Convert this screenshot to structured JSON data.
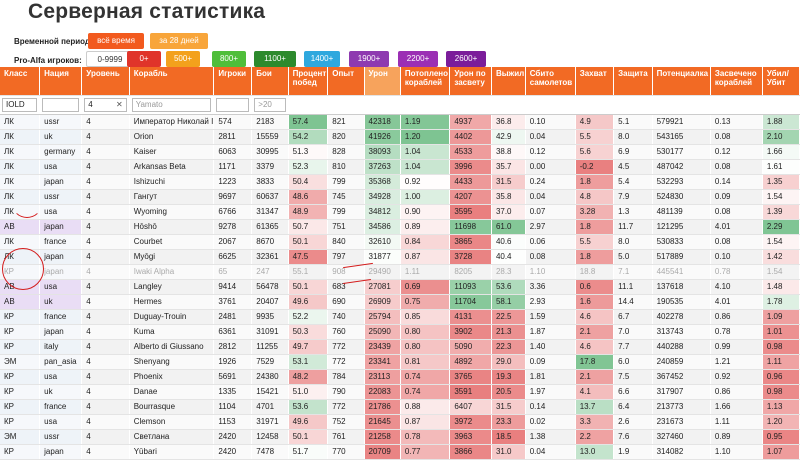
{
  "title": "Серверная статистика",
  "period": {
    "label": "Временной период:",
    "buttons": [
      {
        "label": "всё время",
        "color": "#f25a1e"
      },
      {
        "label": "за 28 дней",
        "color": "#f8a53a"
      }
    ]
  },
  "players": {
    "label": "Pro-Alfa игроков:",
    "buttons": [
      {
        "label": "0-9999",
        "color": "#ffffff",
        "text": "#333333"
      },
      {
        "label": "0+",
        "color": "#e0342a",
        "text": "#ffffff"
      },
      {
        "label": "500+",
        "color": "#f3a11c",
        "text": "#ffffff"
      },
      {
        "label": "800+",
        "color": "#4fbe3a",
        "text": "#ffffff"
      },
      {
        "label": "1100+",
        "color": "#2d8a2d",
        "text": "#ffffff"
      },
      {
        "label": "1400+",
        "color": "#2fa8de",
        "text": "#ffffff"
      },
      {
        "label": "1900+",
        "color": "#8e3ab0",
        "text": "#ffffff"
      },
      {
        "label": "2200+",
        "color": "#9b2fb4",
        "text": "#ffffff"
      },
      {
        "label": "2600+",
        "color": "#7b1d9a",
        "text": "#ffffff"
      }
    ]
  },
  "columns": [
    "Класс",
    "Нация",
    "Уровень",
    "Корабль",
    "Игроки",
    "Бои",
    "Процент побед",
    "Опыт",
    "Урон",
    "Потоплено кораблей",
    "Урон по засвету",
    "Выжил",
    "Сбито самолетов",
    "Захват",
    "Защита",
    "Потенциалка",
    "Засвечено кораблей",
    "Убил/Убит"
  ],
  "filters": {
    "class": "IOLD",
    "level": "4",
    "ship": "Yamato",
    "battles": ">20"
  },
  "rows": [
    {
      "c": [
        "ЛК",
        "ussr",
        "4",
        "Император Николай I",
        "574",
        "2183",
        "57.4",
        "821",
        "42318",
        "1.19",
        "4937",
        "36.8",
        "0.10",
        "4.9",
        "5.1",
        "579921",
        "0.13",
        "1.88"
      ]
    },
    {
      "c": [
        "ЛК",
        "uk",
        "4",
        "Orion",
        "2811",
        "15559",
        "54.2",
        "820",
        "41926",
        "1.20",
        "4402",
        "42.9",
        "0.04",
        "5.5",
        "8.0",
        "543165",
        "0.08",
        "2.10"
      ]
    },
    {
      "c": [
        "ЛК",
        "germany",
        "4",
        "Kaiser",
        "6063",
        "30995",
        "51.3",
        "828",
        "38093",
        "1.04",
        "4533",
        "38.8",
        "0.12",
        "5.6",
        "6.9",
        "530177",
        "0.12",
        "1.66"
      ]
    },
    {
      "c": [
        "ЛК",
        "usa",
        "4",
        "Arkansas Beta",
        "1171",
        "3379",
        "52.3",
        "810",
        "37263",
        "1.04",
        "3996",
        "35.7",
        "0.00",
        "-0.2",
        "4.5",
        "487042",
        "0.08",
        "1.61"
      ]
    },
    {
      "c": [
        "ЛК",
        "japan",
        "4",
        "Ishizuchi",
        "1223",
        "3833",
        "50.4",
        "799",
        "35368",
        "0.92",
        "4433",
        "31.5",
        "0.24",
        "1.8",
        "5.4",
        "532293",
        "0.14",
        "1.35"
      ]
    },
    {
      "c": [
        "ЛК",
        "ussr",
        "4",
        "Гангут",
        "9697",
        "60637",
        "48.6",
        "745",
        "34928",
        "1.00",
        "4207",
        "35.8",
        "0.04",
        "4.8",
        "7.9",
        "524830",
        "0.09",
        "1.54"
      ]
    },
    {
      "c": [
        "ЛК",
        "usa",
        "4",
        "Wyoming",
        "6766",
        "31347",
        "48.9",
        "799",
        "34812",
        "0.90",
        "3595",
        "37.0",
        "0.07",
        "3.28",
        "1.3",
        "481139",
        "0.08",
        "1.39"
      ]
    },
    {
      "c": [
        "АВ",
        "japan",
        "4",
        "Hōshō",
        "9278",
        "61365",
        "50.7",
        "751",
        "34586",
        "0.89",
        "11698",
        "61.0",
        "2.97",
        "1.8",
        "11.7",
        "121295",
        "4.01",
        "2.29"
      ]
    },
    {
      "c": [
        "ЛК",
        "france",
        "4",
        "Courbet",
        "2067",
        "8670",
        "50.1",
        "840",
        "32610",
        "0.84",
        "3865",
        "40.6",
        "0.06",
        "5.5",
        "8.0",
        "530833",
        "0.08",
        "1.54"
      ]
    },
    {
      "c": [
        "ЛК",
        "japan",
        "4",
        "Myōgi",
        "6625",
        "32361",
        "47.5",
        "797",
        "31877",
        "0.87",
        "3728",
        "40.4",
        "0.08",
        "1.8",
        "5.0",
        "517889",
        "0.10",
        "1.42"
      ]
    },
    {
      "c": [
        "КР",
        "japan",
        "4",
        "Iwaki Alpha",
        "65",
        "247",
        "55.1",
        "908",
        "29490",
        "1.11",
        "8205",
        "28.3",
        "1.10",
        "18.8",
        "7.1",
        "445541",
        "0.78",
        "1.54"
      ],
      "dim": true
    },
    {
      "c": [
        "АВ",
        "usa",
        "4",
        "Langley",
        "9414",
        "56478",
        "50.1",
        "683",
        "27081",
        "0.69",
        "11093",
        "53.6",
        "3.36",
        "0.6",
        "11.1",
        "137618",
        "4.10",
        "1.48"
      ]
    },
    {
      "c": [
        "АВ",
        "uk",
        "4",
        "Hermes",
        "3761",
        "20407",
        "49.6",
        "690",
        "26909",
        "0.75",
        "11704",
        "58.1",
        "2.93",
        "1.6",
        "14.4",
        "190535",
        "4.01",
        "1.78"
      ]
    },
    {
      "c": [
        "КР",
        "france",
        "4",
        "Duguay-Trouin",
        "2481",
        "9935",
        "52.2",
        "740",
        "25794",
        "0.85",
        "4131",
        "22.5",
        "1.59",
        "4.6",
        "6.7",
        "402278",
        "0.86",
        "1.09"
      ]
    },
    {
      "c": [
        "КР",
        "japan",
        "4",
        "Kuma",
        "6361",
        "31091",
        "50.3",
        "760",
        "25090",
        "0.80",
        "3902",
        "21.3",
        "1.87",
        "2.1",
        "7.0",
        "313743",
        "0.78",
        "1.01"
      ]
    },
    {
      "c": [
        "КР",
        "italy",
        "4",
        "Alberto di Giussano",
        "2812",
        "11255",
        "49.7",
        "772",
        "23439",
        "0.80",
        "5090",
        "22.3",
        "1.40",
        "4.6",
        "7.7",
        "440288",
        "0.99",
        "0.98"
      ]
    },
    {
      "c": [
        "ЭМ",
        "pan_asia",
        "4",
        "Shenyang",
        "1926",
        "7529",
        "53.1",
        "772",
        "23341",
        "0.81",
        "4892",
        "29.0",
        "0.09",
        "17.8",
        "6.0",
        "240859",
        "1.21",
        "1.11"
      ]
    },
    {
      "c": [
        "КР",
        "usa",
        "4",
        "Phoenix",
        "5691",
        "24380",
        "48.2",
        "784",
        "23113",
        "0.74",
        "3765",
        "19.3",
        "1.81",
        "2.1",
        "7.5",
        "367452",
        "0.92",
        "0.96"
      ]
    },
    {
      "c": [
        "КР",
        "uk",
        "4",
        "Danae",
        "1335",
        "15421",
        "51.0",
        "790",
        "22083",
        "0.74",
        "3591",
        "20.5",
        "1.97",
        "4.1",
        "6.6",
        "317907",
        "0.86",
        "0.98"
      ]
    },
    {
      "c": [
        "КР",
        "france",
        "4",
        "Bourrasque",
        "1104",
        "4701",
        "53.6",
        "772",
        "21786",
        "0.88",
        "6407",
        "31.5",
        "0.14",
        "13.7",
        "6.4",
        "213773",
        "1.66",
        "1.13"
      ]
    },
    {
      "c": [
        "КР",
        "usa",
        "4",
        "Clemson",
        "1153",
        "31971",
        "49.6",
        "752",
        "21645",
        "0.87",
        "3972",
        "23.3",
        "0.02",
        "3.3",
        "2.6",
        "231673",
        "1.11",
        "1.20"
      ]
    },
    {
      "c": [
        "ЭМ",
        "ussr",
        "4",
        "Светлана",
        "2420",
        "12458",
        "50.1",
        "761",
        "21258",
        "0.78",
        "3963",
        "18.5",
        "1.38",
        "2.2",
        "7.6",
        "327460",
        "0.89",
        "0.95"
      ]
    },
    {
      "c": [
        "КР",
        "japan",
        "4",
        "Yūbari",
        "2420",
        "7478",
        "51.7",
        "770",
        "20709",
        "0.77",
        "3866",
        "31.0",
        "0.04",
        "13.0",
        "1.9",
        "314082",
        "1.10",
        "1.07"
      ]
    }
  ]
}
